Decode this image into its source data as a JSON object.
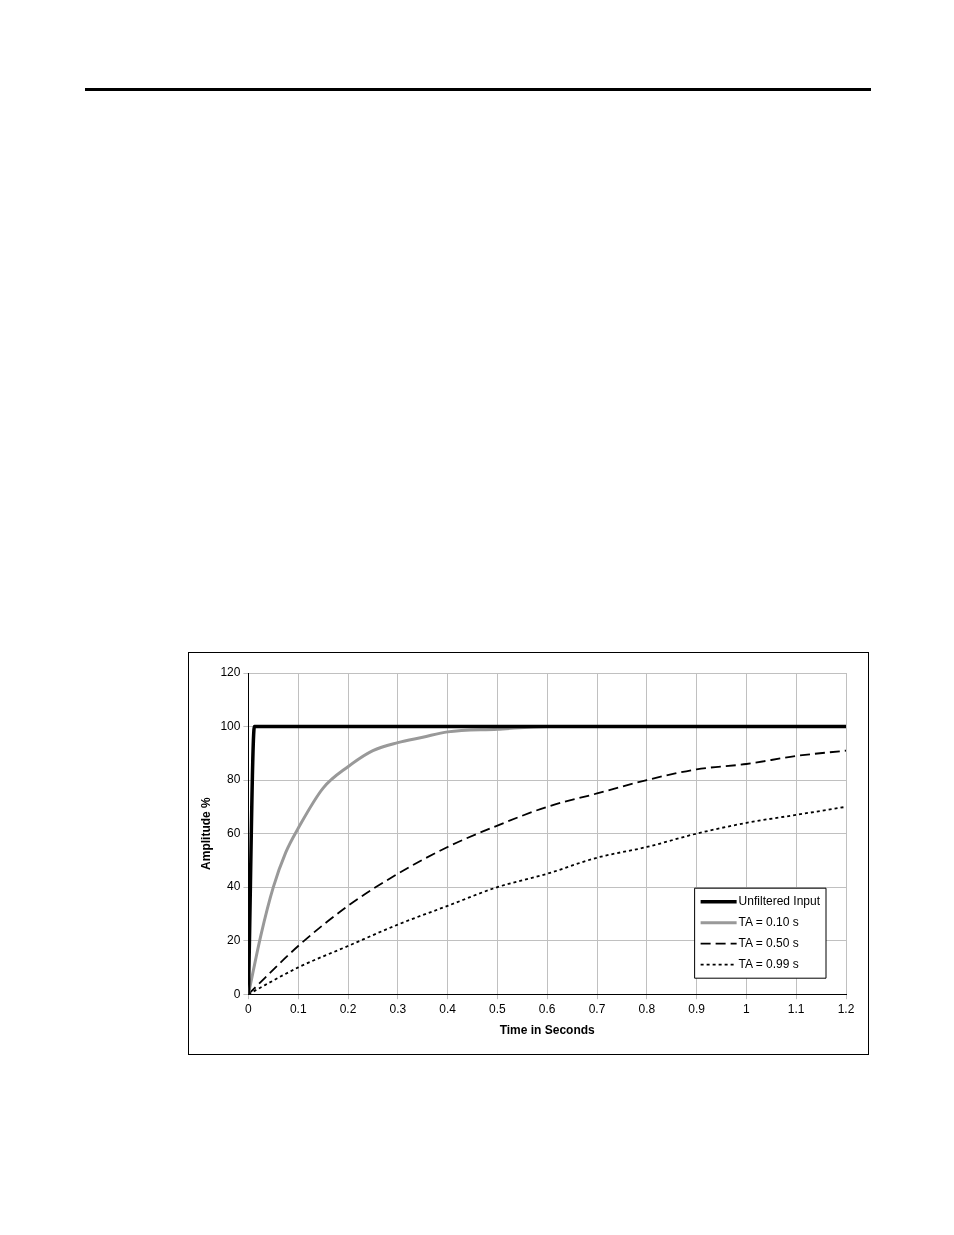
{
  "chart_data": {
    "type": "line",
    "xlabel": "Time in Seconds",
    "ylabel": "Amplitude %",
    "xlim": [
      0,
      1.2
    ],
    "xticks": [
      0,
      0.1,
      0.2,
      0.3,
      0.4,
      0.5,
      0.6,
      0.7,
      0.8,
      0.9,
      1,
      1.1,
      1.2
    ],
    "ylim": [
      0,
      120
    ],
    "yticks": [
      0,
      20,
      40,
      60,
      80,
      100,
      120
    ],
    "grid": true,
    "legend": "bottom right",
    "marker": "none",
    "series": [
      {
        "name": "Unfiltered Input",
        "color": "#000000",
        "line_style": "solid",
        "x": [
          0,
          0.012,
          0.02,
          1.2
        ],
        "values": [
          0,
          100,
          100,
          100
        ]
      },
      {
        "name": "TA = 0.10 s",
        "color": "#999999",
        "line_style": "solid",
        "x": [
          0,
          0.025,
          0.05,
          0.075,
          0.1,
          0.15,
          0.2,
          0.25,
          0.3,
          0.35,
          0.4,
          0.5,
          0.6,
          0.8,
          1.0,
          1.2
        ],
        "values": [
          0,
          22,
          40,
          53,
          62,
          77,
          85,
          91,
          94,
          96,
          98,
          99,
          100,
          100,
          100,
          100
        ]
      },
      {
        "name": "TA = 0.50 s",
        "color": "#000000",
        "line_style": "dashed",
        "x": [
          0,
          0.1,
          0.2,
          0.3,
          0.4,
          0.5,
          0.6,
          0.7,
          0.8,
          0.9,
          1.0,
          1.1,
          1.2
        ],
        "values": [
          0,
          18,
          33,
          45,
          55,
          63,
          70,
          75,
          80,
          84,
          86,
          89,
          91
        ]
      },
      {
        "name": "TA = 0.99 s",
        "color": "#000000",
        "line_style": "dotted",
        "x": [
          0,
          0.1,
          0.2,
          0.3,
          0.4,
          0.5,
          0.6,
          0.7,
          0.8,
          0.9,
          1.0,
          1.1,
          1.2
        ],
        "values": [
          0,
          10,
          18,
          26,
          33,
          40,
          45,
          51,
          55,
          60,
          64,
          67,
          70
        ]
      }
    ]
  }
}
